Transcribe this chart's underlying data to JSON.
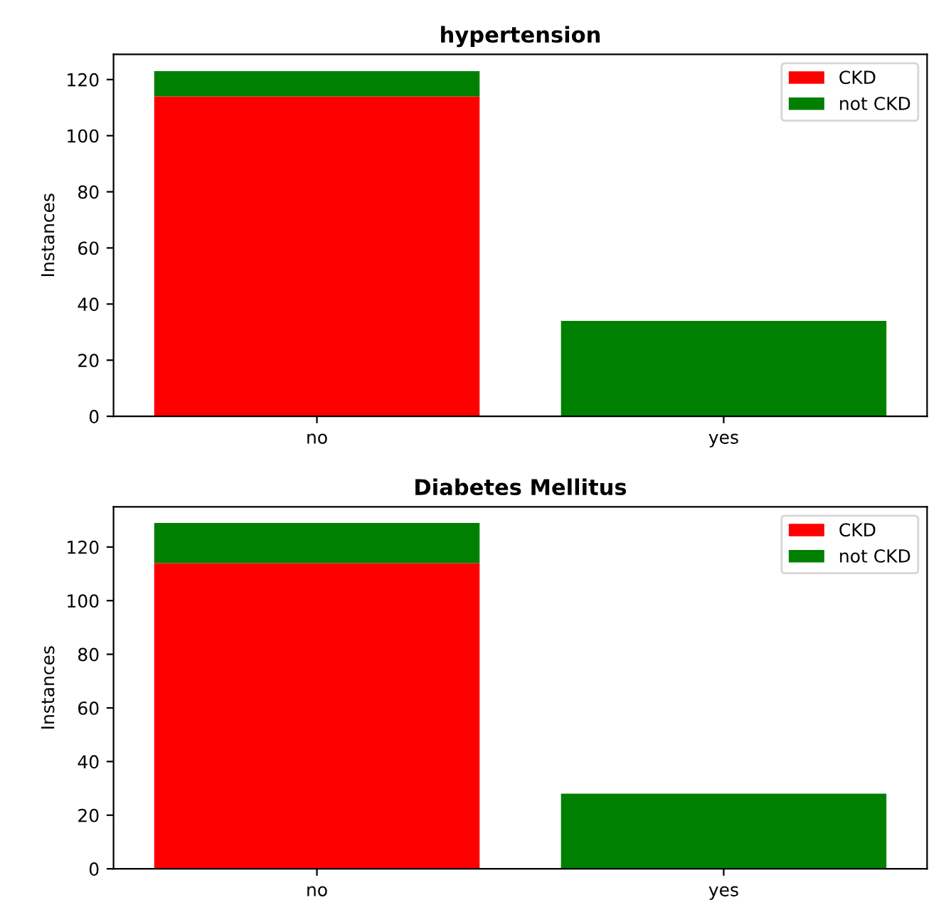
{
  "chart_data": [
    {
      "type": "bar",
      "title": "hypertension",
      "ylabel": "Instances",
      "categories": [
        "no",
        "yes"
      ],
      "stacked": true,
      "ylim": [
        0,
        129
      ],
      "yticks": [
        0,
        20,
        40,
        60,
        80,
        100,
        120
      ],
      "legend": "top right",
      "grid": false,
      "series": [
        {
          "name": "CKD",
          "color": "#ff0000",
          "values": [
            114,
            0
          ]
        },
        {
          "name": "not CKD",
          "color": "#008000",
          "values": [
            9,
            34
          ]
        }
      ]
    },
    {
      "type": "bar",
      "title": "Diabetes Mellitus",
      "ylabel": "Instances",
      "categories": [
        "no",
        "yes"
      ],
      "stacked": true,
      "ylim": [
        0,
        135
      ],
      "yticks": [
        0,
        20,
        40,
        60,
        80,
        100,
        120
      ],
      "legend": "top right",
      "grid": false,
      "series": [
        {
          "name": "CKD",
          "color": "#ff0000",
          "values": [
            114,
            0
          ]
        },
        {
          "name": "not CKD",
          "color": "#008000",
          "values": [
            15,
            28
          ]
        }
      ]
    }
  ]
}
